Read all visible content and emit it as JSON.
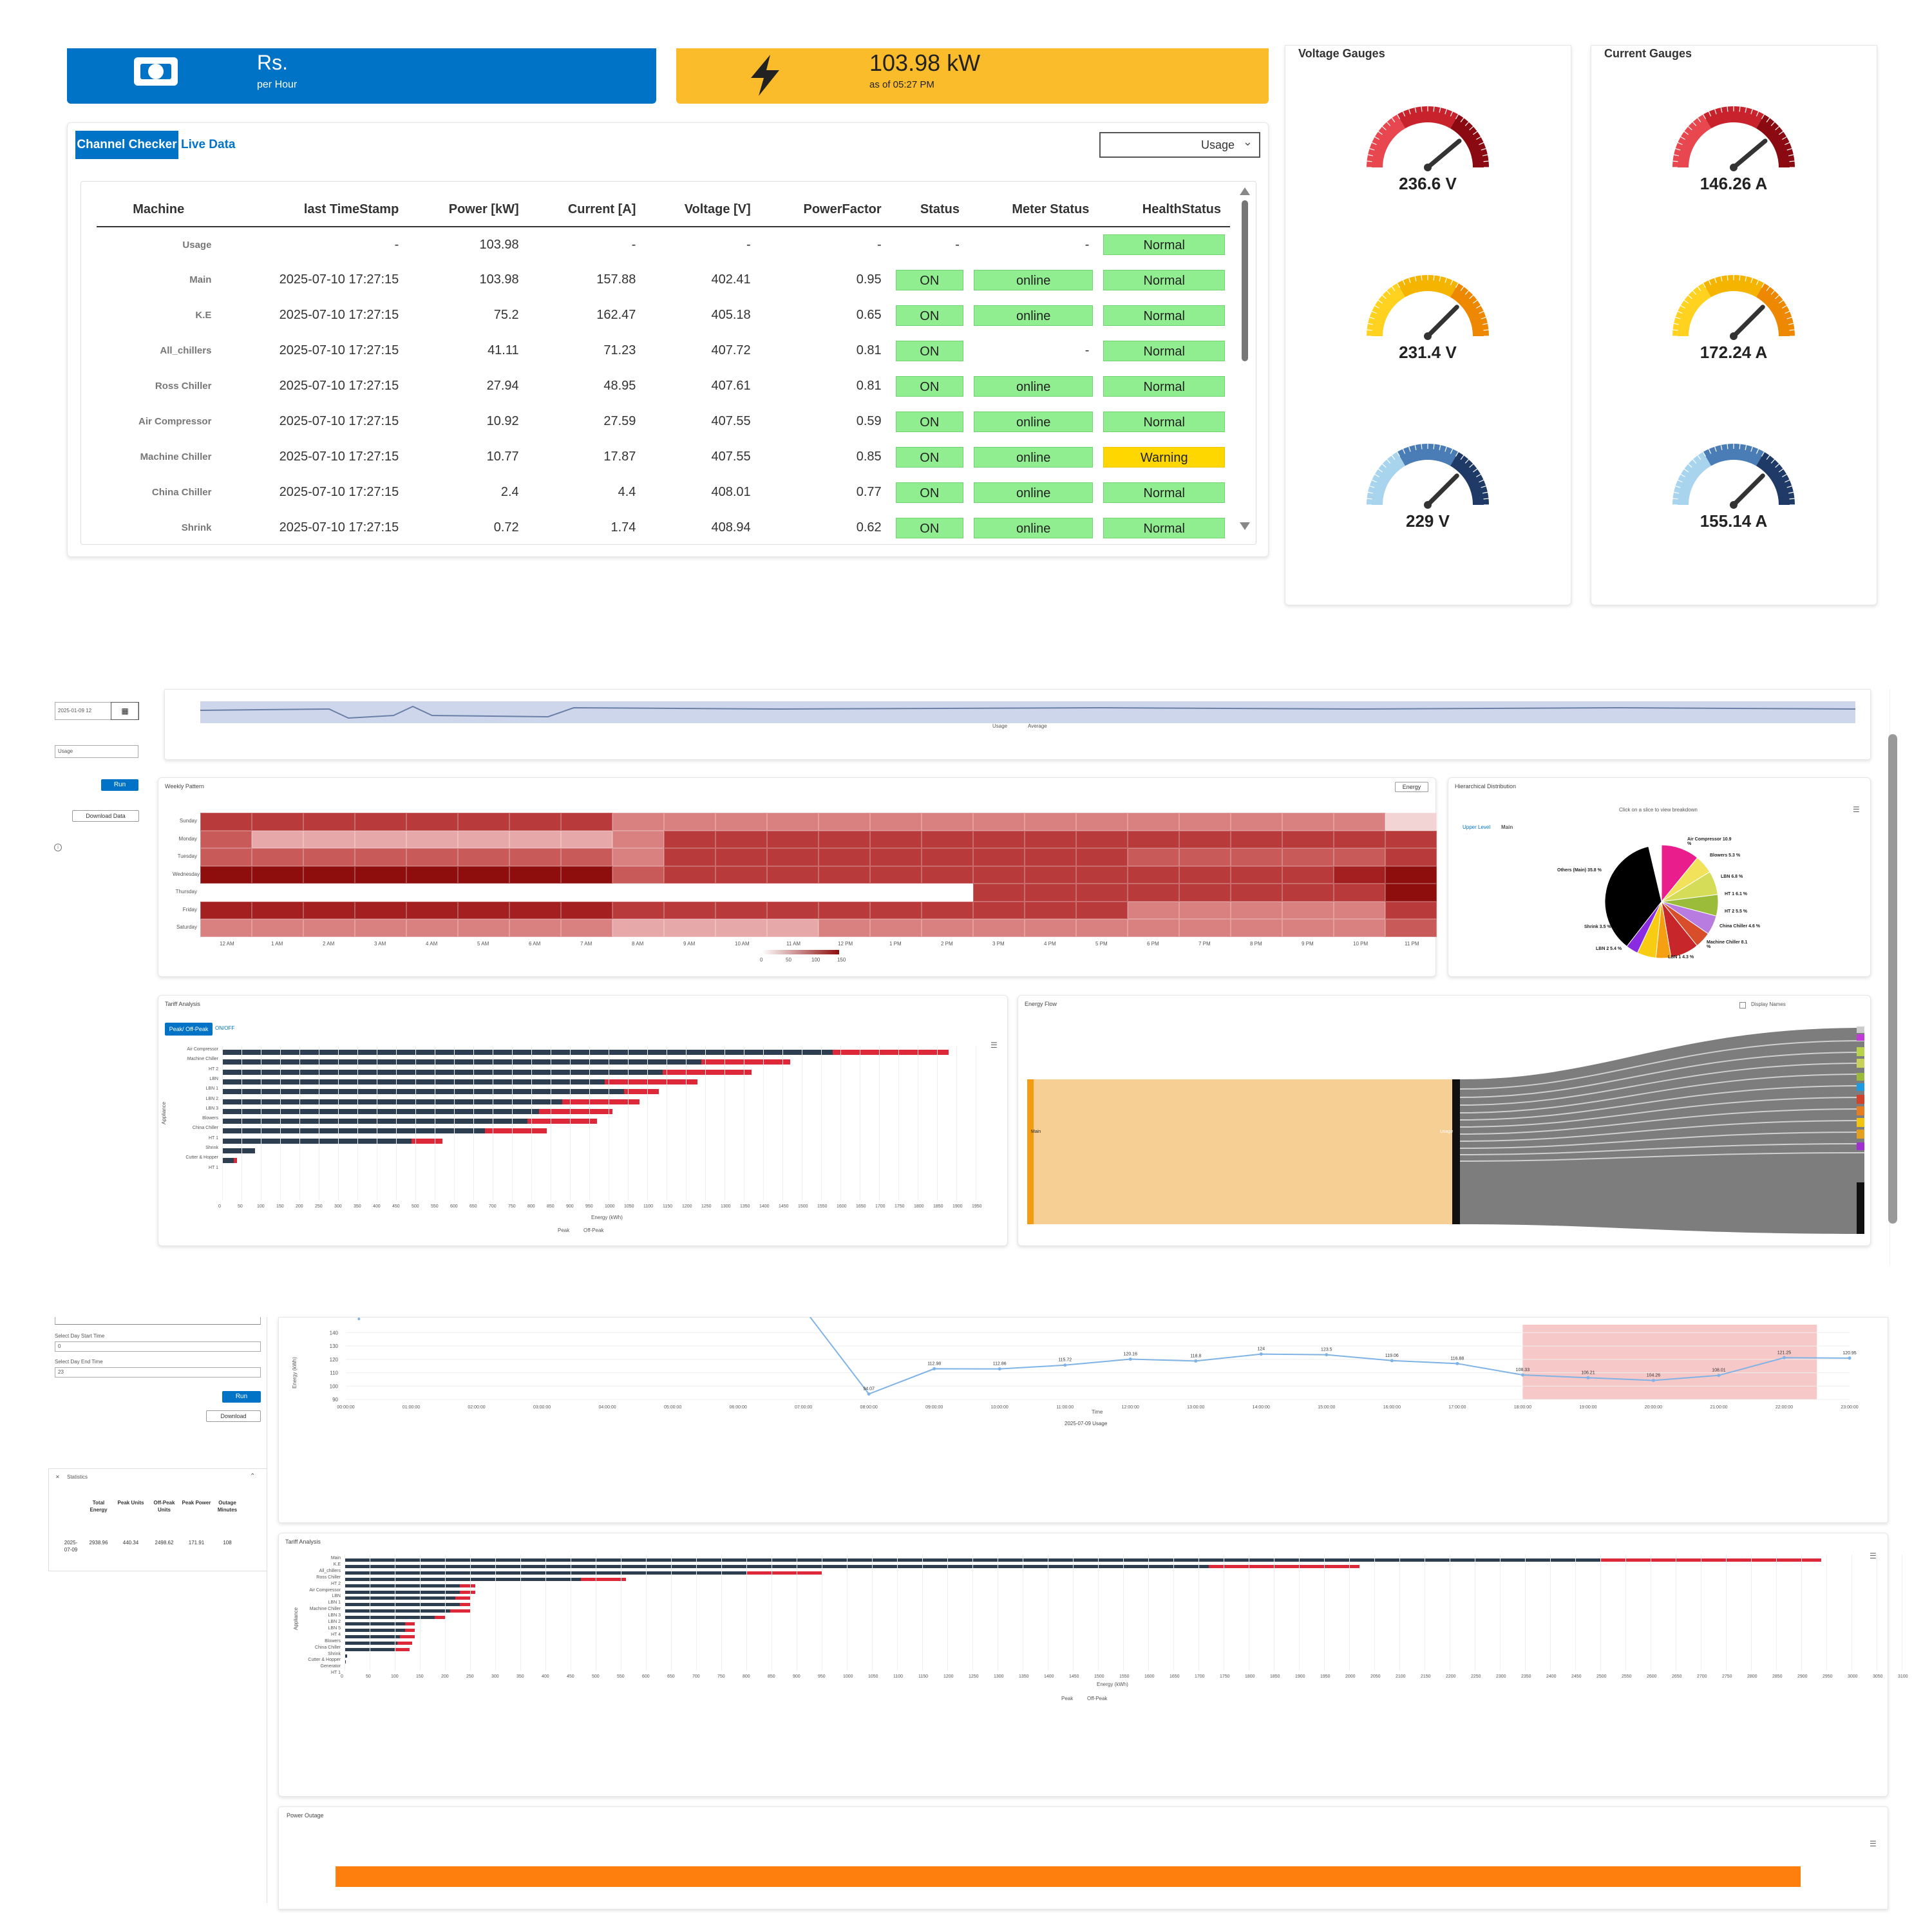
{
  "kpi": {
    "cost_value": "Rs. ",
    "cost_unit": "per Hour",
    "power_value": "103.98 kW",
    "power_time": "as of 05:27 PM"
  },
  "tabs": {
    "channel_checker": "Channel Checker",
    "live_data": "Live Data"
  },
  "filter": {
    "selected": "Usage"
  },
  "table": {
    "headers": [
      "Machine",
      "last TimeStamp",
      "Power [kW]",
      "Current [A]",
      "Voltage [V]",
      "PowerFactor",
      "Status",
      "Meter Status",
      "HealthStatus"
    ],
    "rows": [
      {
        "machine": "Usage",
        "ts": "-",
        "power": "103.98",
        "current": "-",
        "voltage": "-",
        "pf": "-",
        "status": "-",
        "meter": "-",
        "health": "Normal"
      },
      {
        "machine": "Main",
        "ts": "2025-07-10 17:27:15",
        "power": "103.98",
        "current": "157.88",
        "voltage": "402.41",
        "pf": "0.95",
        "status": "ON",
        "meter": "online",
        "health": "Normal"
      },
      {
        "machine": "K.E",
        "ts": "2025-07-10 17:27:15",
        "power": "75.2",
        "current": "162.47",
        "voltage": "405.18",
        "pf": "0.65",
        "status": "ON",
        "meter": "online",
        "health": "Normal"
      },
      {
        "machine": "All_chillers",
        "ts": "2025-07-10 17:27:15",
        "power": "41.11",
        "current": "71.23",
        "voltage": "407.72",
        "pf": "0.81",
        "status": "ON",
        "meter": "-",
        "health": "Normal"
      },
      {
        "machine": "Ross Chiller",
        "ts": "2025-07-10 17:27:15",
        "power": "27.94",
        "current": "48.95",
        "voltage": "407.61",
        "pf": "0.81",
        "status": "ON",
        "meter": "online",
        "health": "Normal"
      },
      {
        "machine": "Air Compressor",
        "ts": "2025-07-10 17:27:15",
        "power": "10.92",
        "current": "27.59",
        "voltage": "407.55",
        "pf": "0.59",
        "status": "ON",
        "meter": "online",
        "health": "Normal"
      },
      {
        "machine": "Machine Chiller",
        "ts": "2025-07-10 17:27:15",
        "power": "10.77",
        "current": "17.87",
        "voltage": "407.55",
        "pf": "0.85",
        "status": "ON",
        "meter": "online",
        "health": "Warning"
      },
      {
        "machine": "China Chiller",
        "ts": "2025-07-10 17:27:15",
        "power": "2.4",
        "current": "4.4",
        "voltage": "408.01",
        "pf": "0.77",
        "status": "ON",
        "meter": "online",
        "health": "Normal"
      },
      {
        "machine": "Shrink",
        "ts": "2025-07-10 17:27:15",
        "power": "0.72",
        "current": "1.74",
        "voltage": "408.94",
        "pf": "0.62",
        "status": "ON",
        "meter": "online",
        "health": "Normal"
      }
    ]
  },
  "voltage_gauges": {
    "title": "Voltage Gauges",
    "values": [
      "236.6 V",
      "231.4 V",
      "229 V"
    ]
  },
  "current_gauges": {
    "title": "Current Gauges",
    "values": [
      "146.26 A",
      "172.24 A",
      "155.14 A"
    ]
  },
  "panel2": {
    "date_value": "2025-01-09 12",
    "select_value": "Usage",
    "run_label": "Run",
    "download_label": "Download Data",
    "legend": [
      "Usage",
      "Average"
    ],
    "weekly_title": "Weekly Pattern",
    "weekly_select": "Energy",
    "days": [
      "Sunday",
      "Monday",
      "Tuesday",
      "Wednesday",
      "Thursday",
      "Friday",
      "Saturday"
    ],
    "hours": [
      "12 AM",
      "1 AM",
      "2 AM",
      "3 AM",
      "4 AM",
      "5 AM",
      "6 AM",
      "7 AM",
      "8 AM",
      "9 AM",
      "10 AM",
      "11 AM",
      "12 PM",
      "1 PM",
      "2 PM",
      "3 PM",
      "4 PM",
      "5 PM",
      "6 PM",
      "7 PM",
      "8 PM",
      "9 PM",
      "10 PM",
      "11 PM"
    ],
    "heat_scale": [
      "0",
      "50",
      "100",
      "150"
    ],
    "hier_title": "Hierarchical Distribution",
    "hier_hint": "Click on a slice to view breakdown",
    "hier_breadcrumb": [
      "Upper Level",
      "Main"
    ],
    "pie_labels": [
      "Air Compressor 10.9 %",
      "Blowers 5.3 %",
      "LBN 6.8 %",
      "HT 1 6.1 %",
      "HT 2 5.5 %",
      "China Chiller 4.6 %",
      "Machine Chiller 8.1 %",
      "LBN 1 4.3 %",
      "LBN 2 5.4 %",
      "Shrink 3.5 %",
      "Others (Main) 35.8 %"
    ],
    "tariff_title": "Tariff Analysis",
    "tariff_tabs": [
      "Peak/ Off-Peak",
      "ON/OFF"
    ],
    "tariff_ylabel": "Appliance",
    "tariff_xlabel": "Energy (kWh)",
    "tariff_legend": [
      "Peak",
      "Off-Peak"
    ],
    "flow_title": "Energy Flow",
    "flow_option": "Display Names",
    "flow_nodes": [
      "Main",
      "Usage"
    ]
  },
  "tariff1_data": {
    "type": "bar",
    "categories": [
      "Air Compressor",
      "Machine Chiller",
      "HT 2",
      "LBN",
      "LBN 1",
      "LBN 2",
      "LBN 3",
      "Blowers",
      "China Chiller",
      "HT 1",
      "Shrink",
      "Cutter & Hopper",
      "HT 1"
    ],
    "series": [
      {
        "name": "Off-Peak",
        "values": [
          1580,
          1240,
          1140,
          990,
          1040,
          880,
          820,
          790,
          680,
          490,
          85,
          30,
          0
        ]
      },
      {
        "name": "Peak",
        "values": [
          300,
          230,
          230,
          240,
          90,
          200,
          190,
          180,
          160,
          80,
          0,
          8,
          0
        ]
      }
    ],
    "ticks": [
      "0",
      "50",
      "100",
      "150",
      "200",
      "250",
      "300",
      "350",
      "400",
      "450",
      "500",
      "550",
      "600",
      "650",
      "700",
      "750",
      "800",
      "850",
      "900",
      "950",
      "1000",
      "1050",
      "1100",
      "1150",
      "1200",
      "1250",
      "1300",
      "1350",
      "1400",
      "1450",
      "1500",
      "1550",
      "1600",
      "1650",
      "1700",
      "1750",
      "1800",
      "1850",
      "1900",
      "1950"
    ]
  },
  "panel3": {
    "start_label": "Select Day Start Time",
    "start_value": "0",
    "end_label": "Select Day End Time",
    "end_value": "23",
    "run_label": "Run",
    "download_label": "Download",
    "stats_title": "Statistics",
    "stats_headers": [
      "Total Energy",
      "Peak Units",
      "Off-Peak Units",
      "Peak Power",
      "Outage Minutes"
    ],
    "stats_row": [
      "2025-07-09",
      "2938.96",
      "440.34",
      "2498.62",
      "171.91",
      "108"
    ],
    "line_ylabel": "Energy (kWh)",
    "line_xlabel": "Time",
    "line_legend": "2025-07-09 Usage",
    "tariff_title": "Tariff Analysis",
    "tariff_ylabel": "Appliance",
    "tariff_xlabel": "Energy (kWh)",
    "tariff_legend": [
      "Peak",
      "Off-Peak"
    ],
    "outage_title": "Power Outage"
  },
  "line_data": {
    "type": "line",
    "x": [
      "00:00:00",
      "01:00:00",
      "02:00:00",
      "03:00:00",
      "04:00:00",
      "05:00:00",
      "06:00:00",
      "07:00:00",
      "08:00:00",
      "09:00:00",
      "10:00:00",
      "11:00:00",
      "12:00:00",
      "13:00:00",
      "14:00:00",
      "15:00:00",
      "16:00:00",
      "17:00:00",
      "18:00:00",
      "19:00:00",
      "20:00:00",
      "21:00:00",
      "22:00:00",
      "23:00:00"
    ],
    "labels": [
      "",
      "",
      "",
      "",
      "",
      "",
      "",
      "",
      "94.07",
      "112.98",
      "112.86",
      "115.72",
      "120.16",
      "118.8",
      "124",
      "123.5",
      "119.06",
      "116.88",
      "108.33",
      "106.21",
      "104.26",
      "108.01",
      "121.25",
      "120.95"
    ],
    "values": [
      150,
      150,
      150,
      150,
      150,
      150,
      150,
      150,
      94.07,
      112.98,
      112.86,
      115.72,
      120.16,
      118.8,
      124,
      123.5,
      119.06,
      116.88,
      108.33,
      106.21,
      104.26,
      108.01,
      121.25,
      120.95
    ],
    "yticks": [
      "90",
      "100",
      "110",
      "120",
      "130",
      "140"
    ],
    "ylim": [
      90,
      146
    ]
  },
  "tariff2_data": {
    "type": "bar",
    "categories": [
      "Main",
      "K.E",
      "All_chillers",
      "Ross Chiller",
      "HT 2",
      "Air Compressor",
      "LBN",
      "LBN 1",
      "Machine Chiller",
      "LBN 3",
      "LBN 2",
      "LBN 5",
      "HT 4",
      "Blowers",
      "China Chiller",
      "Shrink",
      "Cutter & Hopper",
      "Generator",
      "HT 1"
    ],
    "series": [
      {
        "name": "Off-Peak",
        "values": [
          2500,
          1720,
          800,
          470,
          230,
          230,
          220,
          230,
          210,
          180,
          120,
          120,
          110,
          105,
          100,
          5,
          3,
          0,
          0
        ]
      },
      {
        "name": "Peak",
        "values": [
          440,
          300,
          150,
          90,
          30,
          30,
          30,
          20,
          40,
          20,
          20,
          20,
          30,
          30,
          30,
          0,
          0,
          0,
          0
        ]
      }
    ],
    "ticks": [
      "0",
      "50",
      "100",
      "150",
      "200",
      "250",
      "300",
      "350",
      "400",
      "450",
      "500",
      "550",
      "600",
      "650",
      "700",
      "750",
      "800",
      "850",
      "900",
      "950",
      "1000",
      "1050",
      "1100",
      "1150",
      "1200",
      "1250",
      "1300",
      "1350",
      "1400",
      "1450",
      "1500",
      "1550",
      "1600",
      "1650",
      "1700",
      "1750",
      "1800",
      "1850",
      "1900",
      "1950",
      "2000",
      "2050",
      "2100",
      "2150",
      "2200",
      "2250",
      "2300",
      "2350",
      "2400",
      "2450",
      "2500",
      "2550",
      "2600",
      "2650",
      "2700",
      "2750",
      "2800",
      "2850",
      "2900",
      "2950",
      "3000",
      "3050",
      "3100"
    ]
  },
  "colors": {
    "blue": "#0073c6",
    "yellow": "#fbbc2b",
    "navy": "#2c3e50",
    "red": "#dc2839",
    "orange": "#ff7f0e"
  }
}
